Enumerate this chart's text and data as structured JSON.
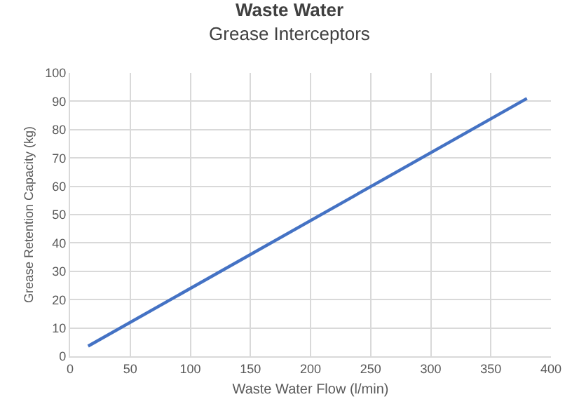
{
  "chart_data": {
    "type": "line",
    "title": "Waste Water",
    "subtitle": "Grease Interceptors",
    "xlabel": "Waste Water Flow (l/min)",
    "ylabel": "Grease Retention Capacity (kg)",
    "x": [
      15,
      380
    ],
    "series": [
      {
        "color": "#4472c4",
        "values": [
          3.6,
          91
        ]
      }
    ],
    "xlim": [
      0,
      400
    ],
    "xticks": [
      0,
      50,
      100,
      150,
      200,
      250,
      300,
      350,
      400
    ],
    "ylim": [
      0,
      100
    ],
    "yticks": [
      0,
      10,
      20,
      30,
      40,
      50,
      60,
      70,
      80,
      90,
      100
    ],
    "grid": true,
    "marker": "none",
    "line_style": "solid"
  }
}
